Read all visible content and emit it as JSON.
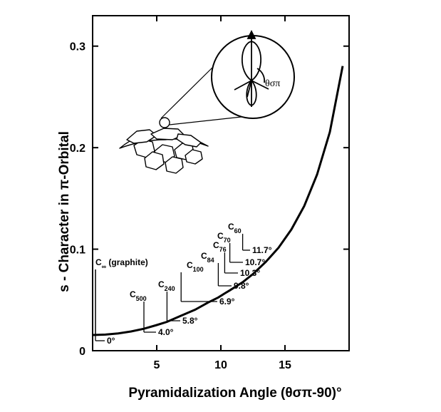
{
  "chart_data": {
    "type": "line",
    "xlabel": "Pyramidalization Angle (θσπ-90)°",
    "ylabel": "s - Character in π-Orbital",
    "xlim": [
      0,
      20
    ],
    "ylim": [
      0,
      0.33
    ],
    "x_ticks": [
      {
        "value": 5,
        "label": "5"
      },
      {
        "value": 10,
        "label": "10"
      },
      {
        "value": 15,
        "label": "15"
      }
    ],
    "y_ticks": [
      {
        "value": 0,
        "label": "0"
      },
      {
        "value": 0.1,
        "label": "0.1"
      },
      {
        "value": 0.2,
        "label": "0.2"
      },
      {
        "value": 0.3,
        "label": "0.3"
      }
    ],
    "series": [
      {
        "x": [
          0,
          1,
          2,
          3,
          4,
          5,
          5.8,
          6.9,
          8,
          9,
          9.8,
          10.3,
          10.7,
          11.7,
          12.5,
          13.5,
          14.5,
          15.5,
          16.5,
          17.5,
          18.5,
          19.5
        ],
        "y": [
          0,
          0.0004,
          0.0016,
          0.0035,
          0.0062,
          0.0098,
          0.013,
          0.019,
          0.025,
          0.032,
          0.037,
          0.041,
          0.044,
          0.052,
          0.06,
          0.072,
          0.086,
          0.104,
          0.127,
          0.158,
          0.2,
          0.265
        ]
      }
    ],
    "grid": false,
    "annotations": [
      {
        "formula": "C",
        "sub": "∞",
        "text": " (graphite)",
        "angle": "0°",
        "x": 0
      },
      {
        "formula": "C",
        "sub": "500",
        "angle": "4.0°",
        "x": 4.0
      },
      {
        "formula": "C",
        "sub": "240",
        "angle": "5.8°",
        "x": 5.8
      },
      {
        "formula": "C",
        "sub": "100",
        "angle": "6.9°",
        "x": 6.9
      },
      {
        "formula": "C",
        "sub": "84",
        "angle": "9.8°",
        "x": 9.8
      },
      {
        "formula": "C",
        "sub": "76",
        "angle": "10.3°",
        "x": 10.3
      },
      {
        "formula": "C",
        "sub": "70",
        "angle": "10.7°",
        "x": 10.7
      },
      {
        "formula": "C",
        "sub": "60",
        "angle": "11.7°",
        "x": 11.7
      }
    ],
    "inset_label": "θσπ"
  }
}
